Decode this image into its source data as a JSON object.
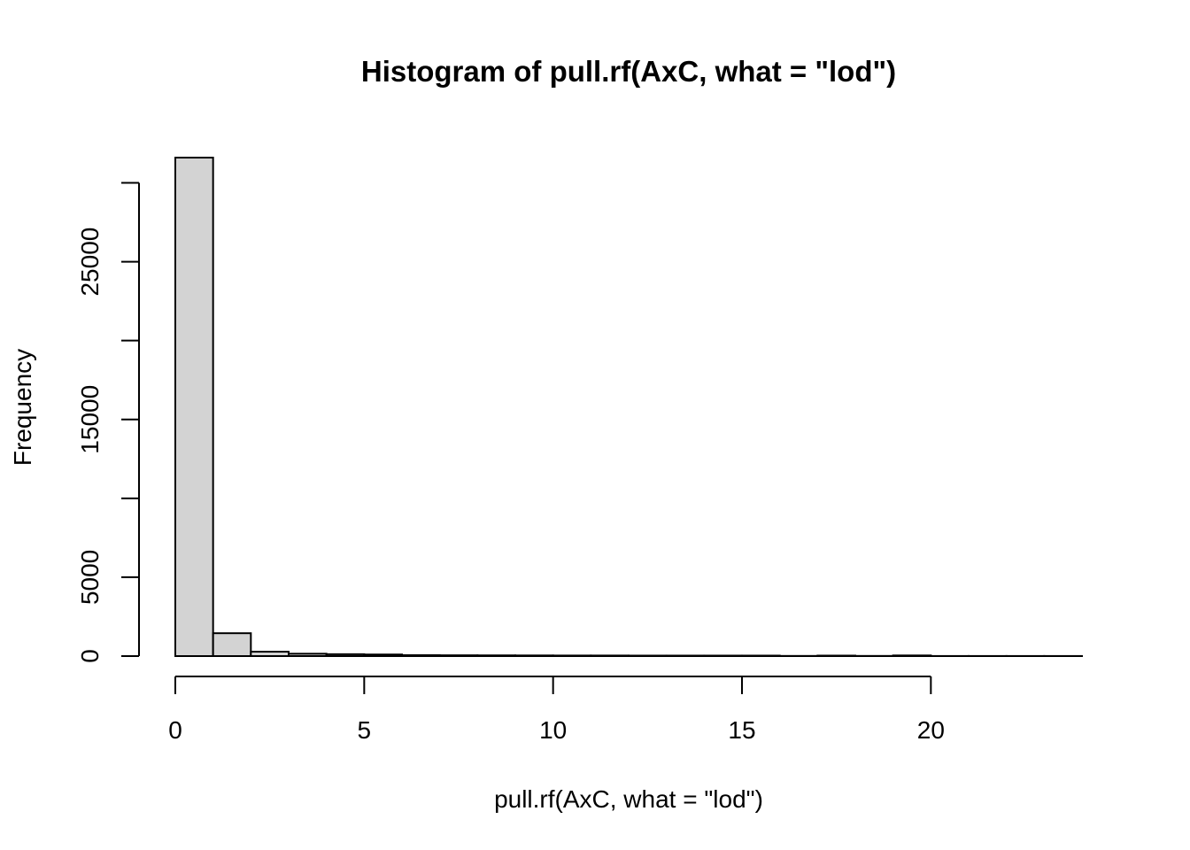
{
  "chart_data": {
    "type": "bar",
    "title": "Histogram of pull.rf(AxC, what = \"lod\")",
    "xlabel": "pull.rf(AxC, what = \"lod\")",
    "ylabel": "Frequency",
    "bins": [
      {
        "x0": 0,
        "x1": 1,
        "count": 31600
      },
      {
        "x0": 1,
        "x1": 2,
        "count": 1450
      },
      {
        "x0": 2,
        "x1": 3,
        "count": 280
      },
      {
        "x0": 3,
        "x1": 4,
        "count": 150
      },
      {
        "x0": 4,
        "x1": 5,
        "count": 120
      },
      {
        "x0": 5,
        "x1": 6,
        "count": 100
      },
      {
        "x0": 6,
        "x1": 7,
        "count": 60
      },
      {
        "x0": 7,
        "x1": 8,
        "count": 50
      },
      {
        "x0": 8,
        "x1": 9,
        "count": 45
      },
      {
        "x0": 9,
        "x1": 10,
        "count": 40
      },
      {
        "x0": 10,
        "x1": 11,
        "count": 35
      },
      {
        "x0": 11,
        "x1": 12,
        "count": 35
      },
      {
        "x0": 12,
        "x1": 13,
        "count": 30
      },
      {
        "x0": 13,
        "x1": 14,
        "count": 30
      },
      {
        "x0": 14,
        "x1": 15,
        "count": 30
      },
      {
        "x0": 15,
        "x1": 16,
        "count": 30
      },
      {
        "x0": 16,
        "x1": 17,
        "count": 10
      },
      {
        "x0": 17,
        "x1": 18,
        "count": 30
      },
      {
        "x0": 18,
        "x1": 19,
        "count": 10
      },
      {
        "x0": 19,
        "x1": 20,
        "count": 40
      },
      {
        "x0": 20,
        "x1": 21,
        "count": 5
      },
      {
        "x0": 21,
        "x1": 22,
        "count": 5
      },
      {
        "x0": 22,
        "x1": 23,
        "count": 5
      },
      {
        "x0": 23,
        "x1": 24,
        "count": 5
      }
    ],
    "xlim": [
      0,
      24
    ],
    "ylim": [
      0,
      31600
    ],
    "x_ticks": [
      0,
      5,
      10,
      15,
      20
    ],
    "y_ticks": [
      0,
      5000,
      10000,
      15000,
      20000,
      25000,
      30000
    ],
    "y_tick_labels": [
      "0",
      "5000",
      "",
      "15000",
      "",
      "25000",
      ""
    ],
    "bar_fill": "#d3d3d3",
    "bar_stroke": "#000000",
    "grid": false,
    "legend": "none"
  }
}
